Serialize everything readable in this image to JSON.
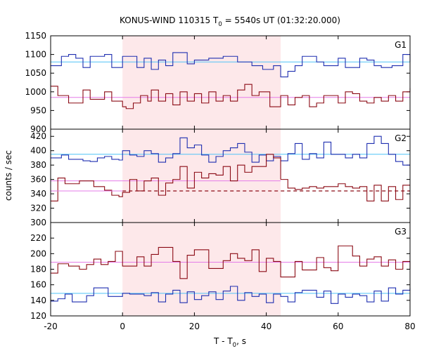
{
  "chart_data": {
    "type": "line",
    "title": {
      "pre": "KONUS-WIND 110315 T",
      "sub": "0",
      "post": " = 5540s UT (01:32:20.000)"
    },
    "xlabel": {
      "pre": "T - T",
      "sub": "0",
      "post": ", s"
    },
    "ylabel": "counts / sec",
    "x_range": [
      -20,
      80
    ],
    "x_ticks": [
      "-20",
      "0",
      "20",
      "40",
      "60",
      "80"
    ],
    "shaded_region": {
      "x_start": 0,
      "x_end": 44,
      "color": "#fde8ea"
    },
    "colors": {
      "blue": "#1f2fb0",
      "red": "#8b0a14",
      "blue_fit": "#4fc3f7",
      "red_fit": "#e57be8"
    },
    "panels": [
      {
        "name": "G1",
        "ylim": [
          900,
          1150
        ],
        "y_ticks": [
          "1150",
          "1100",
          "1050",
          "1000",
          "950",
          "900"
        ],
        "series": [
          {
            "color": "blue",
            "x": [
              -20,
              -17,
              -15,
              -13,
              -11,
              -9,
              -5,
              -3,
              0,
              4,
              6,
              8,
              10,
              12,
              14,
              18,
              20,
              24,
              28,
              32,
              36,
              39,
              42,
              44,
              46,
              48,
              50,
              54,
              56,
              60,
              62,
              64,
              66,
              68,
              70,
              72,
              75,
              78,
              80
            ],
            "values": [
              1070,
              1095,
              1100,
              1090,
              1065,
              1095,
              1100,
              1065,
              1095,
              1065,
              1090,
              1060,
              1085,
              1070,
              1105,
              1075,
              1085,
              1090,
              1095,
              1080,
              1070,
              1060,
              1070,
              1040,
              1055,
              1070,
              1095,
              1080,
              1070,
              1090,
              1065,
              1065,
              1090,
              1085,
              1070,
              1065,
              1070,
              1100,
              1080
            ],
            "fit": 1080,
            "fit_range": [
              -20,
              80
            ]
          },
          {
            "color": "red",
            "x": [
              -20,
              -18,
              -15,
              -11,
              -9,
              -5,
              -3,
              0,
              1,
              3,
              5,
              7,
              8,
              10,
              12,
              14,
              16,
              18,
              20,
              22,
              24,
              26,
              28,
              30,
              32,
              34,
              36,
              38,
              41,
              44,
              46,
              48,
              50,
              52,
              54,
              56,
              60,
              62,
              64,
              66,
              68,
              70,
              72,
              74,
              76,
              78,
              80
            ],
            "values": [
              1015,
              990,
              970,
              1005,
              980,
              1000,
              975,
              960,
              955,
              970,
              990,
              975,
              1005,
              975,
              995,
              965,
              1000,
              975,
              995,
              970,
              1000,
              975,
              990,
              975,
              1005,
              1020,
              990,
              1000,
              960,
              990,
              965,
              985,
              990,
              960,
              970,
              990,
              970,
              1000,
              995,
              975,
              970,
              985,
              975,
              990,
              975,
              1000,
              1010
            ],
            "fit": 985,
            "fit_range": [
              -20,
              80
            ]
          }
        ]
      },
      {
        "name": "G2",
        "ylim": [
          300,
          430
        ],
        "y_ticks": [
          "420",
          "400",
          "380",
          "360",
          "340",
          "320",
          "300"
        ],
        "series": [
          {
            "color": "blue",
            "x": [
              -20,
              -17,
              -15,
              -11,
              -9,
              -7,
              -5,
              -3,
              -1,
              0,
              2,
              4,
              6,
              8,
              10,
              12,
              14,
              16,
              18,
              20,
              22,
              24,
              26,
              28,
              30,
              32,
              34,
              36,
              38,
              40,
              42,
              44,
              46,
              48,
              50,
              52,
              54,
              56,
              58,
              62,
              64,
              66,
              68,
              70,
              72,
              74,
              76,
              78,
              80
            ],
            "values": [
              390,
              394,
              388,
              386,
              385,
              390,
              392,
              388,
              387,
              400,
              394,
              392,
              400,
              396,
              384,
              390,
              396,
              418,
              404,
              408,
              394,
              384,
              392,
              400,
              404,
              410,
              398,
              384,
              394,
              386,
              392,
              386,
              396,
              410,
              388,
              396,
              390,
              412,
              395,
              390,
              395,
              390,
              410,
              420,
              410,
              395,
              385,
              380,
              380
            ],
            "fit": 395,
            "fit_range": [
              -20,
              80
            ]
          },
          {
            "color": "red",
            "x": [
              -20,
              -18,
              -16,
              -12,
              -8,
              -5,
              -3,
              -1,
              0,
              2,
              4,
              6,
              8,
              10,
              12,
              14,
              16,
              18,
              20,
              22,
              24,
              26,
              28,
              30,
              32,
              34,
              36,
              40,
              42,
              44
            ],
            "values": [
              330,
              362,
              354,
              358,
              350,
              345,
              338,
              336,
              342,
              360,
              344,
              358,
              362,
              338,
              355,
              360,
              378,
              348,
              370,
              362,
              368,
              366,
              378,
              358,
              380,
              370,
              378,
              395,
              390,
              360
            ],
            "fit": 358,
            "fit_range": [
              -20,
              44
            ]
          },
          {
            "color": "red",
            "x": [
              44,
              46,
              48,
              50,
              52,
              54,
              56,
              58,
              60,
              62,
              64,
              66,
              68,
              70,
              72,
              74,
              76,
              78,
              80
            ],
            "values": [
              360,
              348,
              346,
              348,
              350,
              348,
              350,
              350,
              354,
              350,
              348,
              350,
              330,
              352,
              330,
              350,
              332,
              352,
              352
            ],
            "fit": 344,
            "fit_range": [
              -20,
              80
            ],
            "fit_dashed_range": [
              0,
              80
            ]
          }
        ]
      },
      {
        "name": "G3",
        "ylim": [
          120,
          240
        ],
        "y_ticks": [
          "220",
          "200",
          "180",
          "160",
          "140",
          "120"
        ],
        "series": [
          {
            "color": "red",
            "x": [
              -20,
              -18,
              -15,
              -12,
              -10,
              -8,
              -6,
              -4,
              -2,
              0,
              4,
              6,
              8,
              10,
              14,
              16,
              18,
              20,
              24,
              28,
              30,
              32,
              34,
              36,
              38,
              40,
              42,
              44,
              48,
              50,
              54,
              56,
              58,
              60,
              64,
              66,
              68,
              70,
              72,
              74,
              76,
              78,
              80
            ],
            "values": [
              175,
              187,
              184,
              180,
              186,
              193,
              186,
              190,
              203,
              184,
              196,
              184,
              199,
              208,
              190,
              168,
              198,
              205,
              181,
              191,
              200,
              194,
              191,
              205,
              177,
              194,
              190,
              170,
              190,
              179,
              195,
              182,
              178,
              210,
              197,
              184,
              193,
              196,
              184,
              192,
              180,
              190,
              180
            ],
            "fit": 189,
            "fit_range": [
              -20,
              80
            ]
          },
          {
            "color": "blue",
            "x": [
              -20,
              -18,
              -16,
              -14,
              -10,
              -8,
              -4,
              0,
              2,
              6,
              8,
              10,
              12,
              14,
              16,
              18,
              20,
              22,
              24,
              26,
              28,
              30,
              32,
              34,
              36,
              38,
              40,
              42,
              44,
              46,
              48,
              50,
              54,
              56,
              58,
              60,
              62,
              64,
              66,
              68,
              70,
              72,
              74,
              76,
              78,
              80
            ],
            "values": [
              139,
              142,
              148,
              138,
              146,
              156,
              145,
              149,
              148,
              146,
              150,
              138,
              148,
              153,
              137,
              151,
              141,
              146,
              151,
              141,
              152,
              158,
              140,
              150,
              145,
              148,
              137,
              148,
              145,
              138,
              150,
              153,
              144,
              152,
              136,
              148,
              144,
              148,
              146,
              138,
              152,
              139,
              156,
              148,
              153,
              156
            ],
            "fit": 149,
            "fit_range": [
              -20,
              80
            ]
          }
        ]
      }
    ]
  }
}
